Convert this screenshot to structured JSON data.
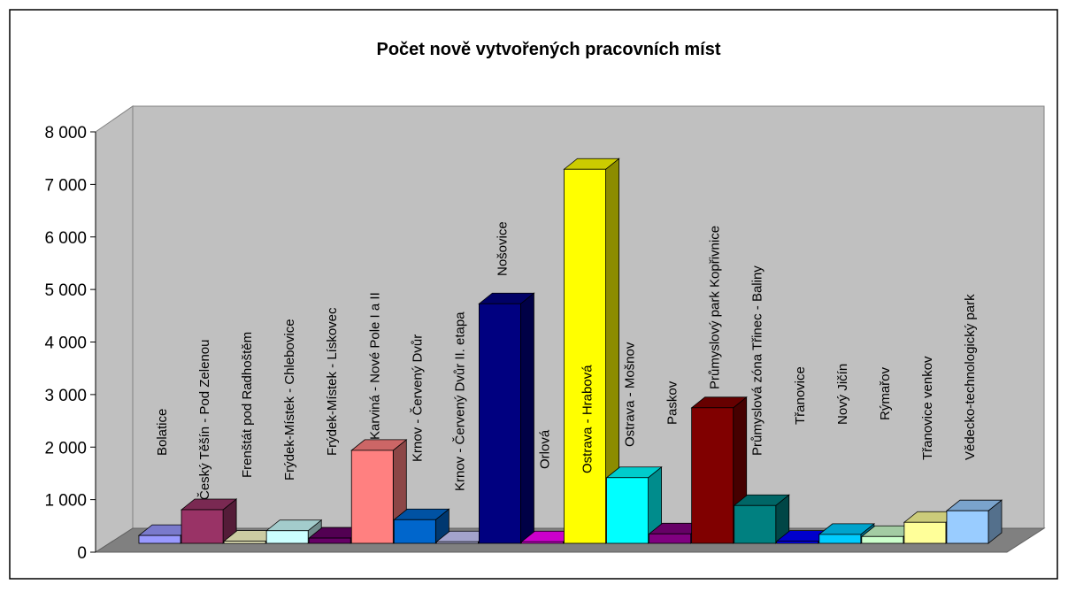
{
  "chart_data": {
    "type": "bar3d",
    "title": "Počet nově vytvořených pracovních míst",
    "categories": [
      "Bolatice",
      "Český Těšín - Pod Zelenou",
      "Frenštát pod Radhoštěm",
      "Frýdek-Místek - Chlebovice",
      "Frýdek-Místek - Lískovec",
      "Karviná - Nové Pole I a II",
      "Krnov - Červený Dvůr",
      "Krnov - Červený Dvůr II. etapa",
      "Nošovice",
      "Orlová",
      "Ostrava - Hrabová",
      "Ostrava - Mošnov",
      "Paskov",
      "Průmyslový park Kopřivnice",
      "Průmyslová zóna Třinec - Baliny",
      "Třanovice",
      "Nový Jičín",
      "Rýmařov",
      "Třanovice venkov",
      "Vědecko-technologický park"
    ],
    "values": [
      150,
      640,
      40,
      240,
      100,
      1770,
      450,
      30,
      4560,
      30,
      7120,
      1250,
      180,
      2580,
      720,
      40,
      170,
      130,
      400,
      620
    ],
    "colors": [
      "#9999ff",
      "#993366",
      "#ffffcc",
      "#ccffff",
      "#660066",
      "#ff8080",
      "#0066cc",
      "#ccccff",
      "#000080",
      "#ff00ff",
      "#ffff00",
      "#00ffff",
      "#800080",
      "#800000",
      "#008080",
      "#0000ff",
      "#00ccff",
      "#ccffcc",
      "#ffff99",
      "#99ccff"
    ],
    "ylim": [
      0,
      8000
    ],
    "yticks": [
      0,
      {
        "value": 1000,
        "label": "1 000"
      },
      {
        "value": 2000,
        "label": "2 000"
      },
      {
        "value": 3000,
        "label": "3 000"
      },
      {
        "value": 4000,
        "label": "4 000"
      },
      {
        "value": 5000,
        "label": "5 000"
      },
      {
        "value": 6000,
        "label": "6 000"
      },
      {
        "value": 7000,
        "label": "7 000"
      },
      {
        "value": 8000,
        "label": "8 000"
      }
    ],
    "grid": false
  }
}
